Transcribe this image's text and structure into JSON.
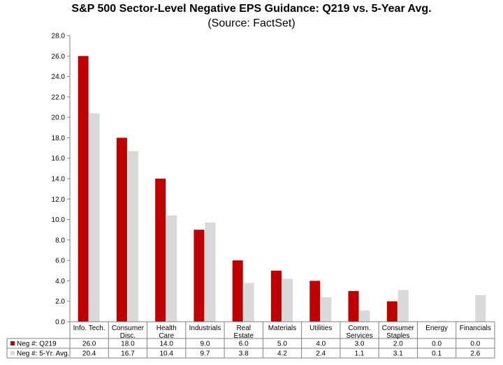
{
  "chart_data": {
    "type": "bar",
    "title": "S&P 500 Sector-Level Negative EPS Guidance: Q219 vs. 5-Year Avg.",
    "subtitle": "(Source: FactSet)",
    "categories": [
      [
        "Info. Tech."
      ],
      [
        "Consumer",
        "Disc."
      ],
      [
        "Health",
        "Care"
      ],
      [
        "Industrials"
      ],
      [
        "Real",
        "Estate"
      ],
      [
        "Materials"
      ],
      [
        "Utilities"
      ],
      [
        "Comm.",
        "Services"
      ],
      [
        "Consumer",
        "Staples"
      ],
      [
        "Energy"
      ],
      [
        "Financials"
      ]
    ],
    "series": [
      {
        "name": "Neg #: Q219",
        "color": "#c00000",
        "values": [
          26.0,
          18.0,
          14.0,
          9.0,
          6.0,
          5.0,
          4.0,
          3.0,
          2.0,
          0.0,
          0.0
        ]
      },
      {
        "name": "Neg #: 5-Yr. Avg.",
        "color": "#d9d9d9",
        "values": [
          20.4,
          16.7,
          10.4,
          9.7,
          3.8,
          4.2,
          2.4,
          1.1,
          3.1,
          0.1,
          2.6
        ]
      }
    ],
    "ylim": [
      0,
      28
    ],
    "yticks": [
      "0.0",
      "2.0",
      "4.0",
      "6.0",
      "8.0",
      "10.0",
      "12.0",
      "14.0",
      "16.0",
      "18.0",
      "20.0",
      "22.0",
      "24.0",
      "26.0",
      "28.0"
    ],
    "grid": false,
    "legend": "data-table"
  }
}
